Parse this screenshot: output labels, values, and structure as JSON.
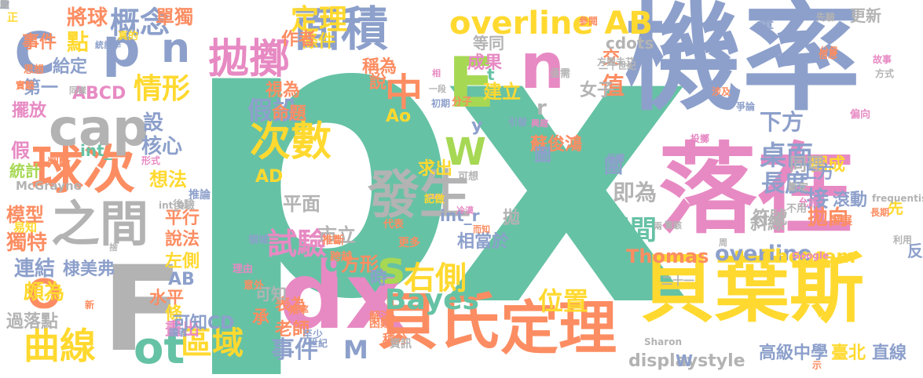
{
  "palette": {
    "green": "#66c2a5",
    "orange": "#fc8d62",
    "blue": "#8da0cb",
    "pink": "#e78ac3",
    "lime": "#a6d854",
    "yellow": "#ffd92f",
    "tan": "#e5c494",
    "gray": "#b3b3b3"
  },
  "words": [
    {
      "text": "p",
      "color": "#66c2a5"
    },
    {
      "text": "x",
      "color": "#66c2a5"
    },
    {
      "text": "機率",
      "color": "#8da0cb"
    },
    {
      "text": "落在",
      "color": "#e78ac3"
    },
    {
      "text": "貝葉斯",
      "color": "#ffd92f"
    },
    {
      "text": "dx",
      "color": "#e78ac3"
    },
    {
      "text": "F",
      "color": "#b3b3b3"
    },
    {
      "text": "E",
      "color": "#a6d854"
    },
    {
      "text": "n",
      "color": "#e78ac3"
    },
    {
      "text": "貝氏",
      "color": "#fc8d62"
    },
    {
      "text": "定理",
      "color": "#fc8d62"
    },
    {
      "text": "發生",
      "color": "#b3b3b3"
    },
    {
      "text": "面積",
      "color": "#8da0cb"
    },
    {
      "text": "之間",
      "color": "#b3b3b3"
    },
    {
      "text": "球次",
      "color": "#fc8d62"
    },
    {
      "text": "cap",
      "color": "#b3b3b3"
    },
    {
      "text": "C",
      "color": "#8da0cb"
    },
    {
      "text": "p",
      "color": "#8da0cb"
    },
    {
      "text": "n",
      "color": "#8da0cb"
    },
    {
      "text": "拋擲",
      "color": "#e78ac3"
    },
    {
      "text": "次數",
      "color": "#ffd92f"
    },
    {
      "text": "overline AB",
      "color": "#ffd92f"
    },
    {
      "text": "中",
      "color": "#fc8d62"
    },
    {
      "text": "s",
      "color": "#a6d854"
    },
    {
      "text": "右側",
      "color": "#ffd92f"
    },
    {
      "text": "O",
      "color": "#fc8d62"
    },
    {
      "text": "ot",
      "color": "#66c2a5"
    },
    {
      "text": "區域",
      "color": "#ffd92f"
    },
    {
      "text": "曲線",
      "color": "#ffd92f"
    },
    {
      "text": "概念",
      "color": "#8da0cb"
    },
    {
      "text": "定理",
      "color": "#ffd92f"
    },
    {
      "text": "Bayes",
      "color": "#66c2a5"
    },
    {
      "text": "位置",
      "color": "#ffd92f"
    },
    {
      "text": "試驗",
      "color": "#e78ac3"
    },
    {
      "text": "overline",
      "color": "#8da0cb"
    },
    {
      "text": "桌面",
      "color": "#8da0cb"
    },
    {
      "text": "下方",
      "color": "#8da0cb"
    },
    {
      "text": "長度",
      "color": "#8da0cb"
    },
    {
      "text": "區間",
      "color": "#66c2a5"
    },
    {
      "text": "接",
      "color": "#8da0cb"
    },
    {
      "text": "拋向",
      "color": "#fc8d62"
    },
    {
      "text": "計算",
      "color": "#66c2a5"
    },
    {
      "text": "值",
      "color": "#fc8d62"
    },
    {
      "text": "假設",
      "color": "#8da0cb"
    },
    {
      "text": "球",
      "color": "#66c2a5"
    },
    {
      "text": "W",
      "color": "#a6d854"
    },
    {
      "text": "情形",
      "color": "#ffd92f"
    },
    {
      "text": "點",
      "color": "#ffd92f"
    },
    {
      "text": "核心",
      "color": "#8da0cb"
    },
    {
      "text": "事件",
      "color": "#8da0cb"
    },
    {
      "text": "M",
      "color": "#8da0cb"
    },
    {
      "text": "高級中學",
      "color": "#8da0cb"
    },
    {
      "text": "臺北",
      "color": "#ffd92f"
    },
    {
      "text": "直線",
      "color": "#8da0cb"
    },
    {
      "text": "Theorem",
      "color": "#ffd92f"
    },
    {
      "text": "Thomas",
      "color": "#fc8d62"
    },
    {
      "text": "蘇俊鴻",
      "color": "#fc8d62"
    },
    {
      "text": "即為",
      "color": "#b3b3b3"
    },
    {
      "text": "將球",
      "color": "#fc8d62"
    },
    {
      "text": "單獨",
      "color": "#fc8d62"
    },
    {
      "text": "事件",
      "color": "#fc8d62"
    },
    {
      "text": "條件",
      "color": "#ffd92f"
    },
    {
      "text": "作者",
      "color": "#fc8d62"
    },
    {
      "text": "給定",
      "color": "#8da0cb"
    },
    {
      "text": "第一",
      "color": "#8da0cb"
    },
    {
      "text": "ABCD",
      "color": "#e78ac3"
    },
    {
      "text": "擺放",
      "color": "#e78ac3"
    },
    {
      "text": "設",
      "color": "#8da0cb"
    },
    {
      "text": "int_",
      "color": "#66c2a5"
    },
    {
      "text": "假",
      "color": "#e78ac3"
    },
    {
      "text": "統計",
      "color": "#a6d854"
    },
    {
      "text": "想法",
      "color": "#ffd92f"
    },
    {
      "text": "模型",
      "color": "#fc8d62"
    },
    {
      "text": "獨特",
      "color": "#fc8d62"
    },
    {
      "text": "連結",
      "color": "#8da0cb"
    },
    {
      "text": "頗為",
      "color": "#ffd92f"
    },
    {
      "text": "過落點",
      "color": "#b3b3b3"
    },
    {
      "text": "棣美弗",
      "color": "#8da0cb"
    },
    {
      "text": "平行",
      "color": "#fc8d62"
    },
    {
      "text": "說法",
      "color": "#fc8d62"
    },
    {
      "text": "左側",
      "color": "#ffd92f"
    },
    {
      "text": "水平",
      "color": "#fc8d62"
    },
    {
      "text": "條",
      "color": "#ffd92f"
    },
    {
      "text": "畫出",
      "color": "#e78ac3"
    },
    {
      "text": "可知CD",
      "color": "#8da0cb"
    },
    {
      "text": "AB",
      "color": "#8da0cb"
    },
    {
      "text": "平面",
      "color": "#b3b3b3"
    },
    {
      "text": "AD",
      "color": "#ffd92f"
    },
    {
      "text": "表為",
      "color": "#fc8d62"
    },
    {
      "text": "老師",
      "color": "#fc8d62"
    },
    {
      "text": "方形",
      "color": "#fc8d62"
    },
    {
      "text": "q",
      "color": "#66c2a5"
    },
    {
      "text": "市立",
      "color": "#b3b3b3"
    },
    {
      "text": "求出",
      "color": "#ffd92f"
    },
    {
      "text": "建立",
      "color": "#ffd92f"
    },
    {
      "text": "成果",
      "color": "#e78ac3"
    },
    {
      "text": "女子",
      "color": "#b3b3b3"
    },
    {
      "text": "圖",
      "color": "#8da0cb"
    },
    {
      "text": "y",
      "color": "#8da0cb"
    },
    {
      "text": "r",
      "color": "#b3b3b3"
    },
    {
      "text": "t",
      "color": "#66c2a5"
    },
    {
      "text": "相當於",
      "color": "#8da0cb"
    },
    {
      "text": "拋",
      "color": "#b3b3b3"
    },
    {
      "text": "命題",
      "color": "#fc8d62"
    },
    {
      "text": "視為",
      "color": "#fc8d62"
    },
    {
      "text": "稱為",
      "color": "#fc8d62"
    },
    {
      "text": "說",
      "color": "#fc8d62"
    },
    {
      "text": "Ao",
      "color": "#ffd92f"
    },
    {
      "text": "時",
      "color": "#8da0cb"
    },
    {
      "text": "承",
      "color": "#fc8d62"
    },
    {
      "text": "圍",
      "color": "#8da0cb"
    },
    {
      "text": "符號",
      "color": "#b3b3b3"
    },
    {
      "text": "斜線",
      "color": "#b3b3b3"
    },
    {
      "text": "反",
      "color": "#8da0cb"
    },
    {
      "text": "先",
      "color": "#ffd92f"
    },
    {
      "text": "滾動",
      "color": "#8da0cb"
    },
    {
      "text": "圍成",
      "color": "#ffd92f"
    },
    {
      "text": "同理",
      "color": "#b3b3b3"
    },
    {
      "text": "上方",
      "color": "#8da0cb"
    },
    {
      "text": "畫",
      "color": "#8da0cb"
    },
    {
      "text": "交",
      "color": "#fc8d62"
    },
    {
      "text": "更新",
      "color": "#b3b3b3"
    },
    {
      "text": "等同",
      "color": "#b3b3b3"
    },
    {
      "text": "cdots",
      "color": "#b3b3b3"
    },
    {
      "text": "displaystyle",
      "color": "#b3b3b3"
    },
    {
      "text": "W",
      "color": "#8da0cb"
    },
    {
      "text": "int_r",
      "color": "#8da0cb"
    },
    {
      "text": "可知",
      "color": "#b3b3b3"
    },
    {
      "text": "正",
      "color": "#ffd92f"
    },
    {
      "text": "真的",
      "color": "#ffd92f"
    },
    {
      "text": "思想",
      "color": "#fc8d62"
    },
    {
      "text": "實驗",
      "color": "#fc8d62"
    },
    {
      "text": "判斷",
      "color": "#fc8d62"
    },
    {
      "text": "McGrayne",
      "color": "#b3b3b3"
    },
    {
      "text": "易知",
      "color": "#ffd92f"
    },
    {
      "text": "後驗",
      "color": "#b3b3b3"
    },
    {
      "text": "推論",
      "color": "#8da0cb"
    },
    {
      "text": "跨越",
      "color": "#fc8d62"
    },
    {
      "text": "推斷",
      "color": "#fc8d62"
    },
    {
      "text": "更多",
      "color": "#fc8d62"
    },
    {
      "text": "積分",
      "color": "#fc8d62"
    },
    {
      "text": "資訊",
      "color": "#b3b3b3"
    },
    {
      "text": "困難",
      "color": "#fc8d62"
    },
    {
      "text": "解決",
      "color": "#fc8d62"
    },
    {
      "text": "二十一",
      "color": "#b3b3b3"
    },
    {
      "text": "示",
      "color": "#fc8d62"
    },
    {
      "text": "Sharon",
      "color": "#b3b3b3"
    },
    {
      "text": "Google",
      "color": "#e78ac3"
    },
    {
      "text": "利用",
      "color": "#b3b3b3"
    },
    {
      "text": "發展",
      "color": "#fc8d62"
    },
    {
      "text": "長期",
      "color": "#fc8d62"
    },
    {
      "text": "frequentism",
      "color": "#b3b3b3"
    },
    {
      "text": "允許",
      "color": "#e78ac3"
    },
    {
      "text": "不用",
      "color": "#b3b3b3"
    },
    {
      "text": "斷定",
      "color": "#b3b3b3"
    },
    {
      "text": "投擲",
      "color": "#e78ac3"
    },
    {
      "text": "偏向",
      "color": "#e78ac3"
    },
    {
      "text": "涉及",
      "color": "#fc8d62"
    },
    {
      "text": "爭論",
      "color": "#8da0cb"
    },
    {
      "text": "方興未艾",
      "color": "#b3b3b3"
    },
    {
      "text": "二十世紀",
      "color": "#b3b3b3"
    },
    {
      "text": "參閱",
      "color": "#fc8d62"
    },
    {
      "text": "故事",
      "color": "#e78ac3"
    },
    {
      "text": "方式",
      "color": "#b3b3b3"
    },
    {
      "text": "信息",
      "color": "#fc8d62"
    },
    {
      "text": "分母",
      "color": "#fc8d62"
    },
    {
      "text": "先驗",
      "color": "#b3b3b3"
    },
    {
      "text": "亟需",
      "color": "#b3b3b3"
    },
    {
      "text": "引發",
      "color": "#8da0cb"
    },
    {
      "text": "分子",
      "color": "#fc8d62"
    },
    {
      "text": "初期",
      "color": "#8da0cb"
    },
    {
      "text": "代表",
      "color": "#fc8d62"
    },
    {
      "text": "可想",
      "color": "#b3b3b3"
    },
    {
      "text": "記做",
      "color": "#ffd92f"
    },
    {
      "text": "領域",
      "color": "#8da0cb"
    },
    {
      "text": "理由",
      "color": "#e78ac3"
    },
    {
      "text": "意外",
      "color": "#fc8d62"
    },
    {
      "text": "至少",
      "color": "#8da0cb"
    },
    {
      "text": "頻率",
      "color": "#fc8d62"
    },
    {
      "text": "世紀",
      "color": "#8da0cb"
    },
    {
      "text": "新",
      "color": "#fc8d62"
    },
    {
      "text": "讀者",
      "color": "#8da0cb"
    },
    {
      "text": "int_0",
      "color": "#b3b3b3"
    },
    {
      "text": "形式",
      "color": "#e78ac3"
    },
    {
      "text": "同樣",
      "color": "#b3b3b3"
    },
    {
      "text": "統計學",
      "color": "#8da0cb"
    },
    {
      "text": "相",
      "color": "#e78ac3"
    },
    {
      "text": "一段",
      "color": "#b3b3b3"
    },
    {
      "text": "興趣",
      "color": "#e78ac3"
    },
    {
      "text": "抵觸",
      "color": "#8da0cb"
    },
    {
      "text": "驚駭",
      "color": "#b3b3b3"
    },
    {
      "text": "兩",
      "color": "#b3b3b3"
    },
    {
      "text": "周",
      "color": "#b3b3b3"
    },
    {
      "text": "冷漠",
      "color": "#e78ac3"
    },
    {
      "text": "而知",
      "color": "#fc8d62"
    },
    {
      "text": "捨",
      "color": "#b3b3b3"
    },
    {
      "text": "四",
      "color": "#b3b3b3"
    },
    {
      "text": "驗",
      "color": "#b3b3b3"
    },
    {
      "text": "定",
      "color": "#8da0cb"
    },
    {
      "text": "賓",
      "color": "#b3b3b3"
    }
  ]
}
